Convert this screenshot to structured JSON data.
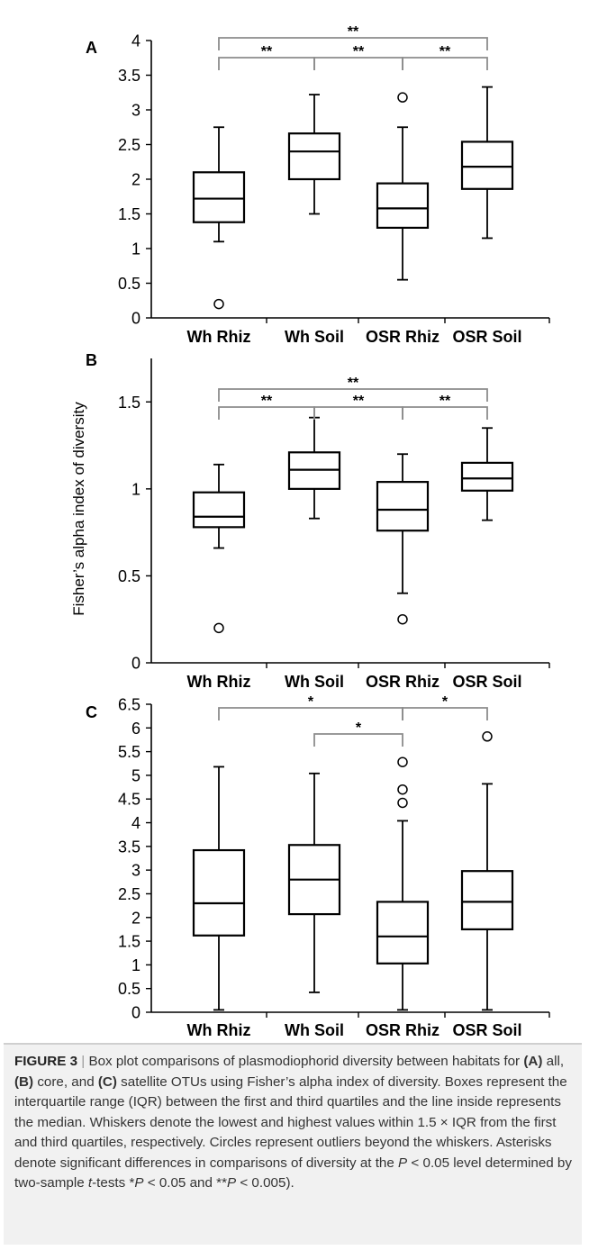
{
  "chart_data": [
    {
      "type": "box",
      "panel_label": "A",
      "ylabel": "",
      "ylim": [
        0,
        4
      ],
      "y_ticks": [
        "0",
        "0.5",
        "1",
        "1.5",
        "2",
        "2.5",
        "3",
        "3.5",
        "4"
      ],
      "y_tick_values": [
        0,
        0.5,
        1,
        1.5,
        2,
        2.5,
        3,
        3.5,
        4
      ],
      "categories": [
        "Wh Rhiz",
        "Wh Soil",
        "OSR Rhiz",
        "OSR Soil"
      ],
      "boxes": [
        {
          "whisker_low": 1.1,
          "q1": 1.38,
          "median": 1.72,
          "q3": 2.1,
          "whisker_high": 2.75,
          "outliers": [
            0.2
          ]
        },
        {
          "whisker_low": 1.5,
          "q1": 2.0,
          "median": 2.4,
          "q3": 2.66,
          "whisker_high": 3.22,
          "outliers": []
        },
        {
          "whisker_low": 0.55,
          "q1": 1.3,
          "median": 1.58,
          "q3": 1.94,
          "whisker_high": 2.75,
          "outliers": [
            3.18
          ]
        },
        {
          "whisker_low": 1.15,
          "q1": 1.86,
          "median": 2.18,
          "q3": 2.54,
          "whisker_high": 3.33,
          "outliers": []
        }
      ],
      "brackets": [
        {
          "from": 0,
          "to": 3,
          "level": 2,
          "label": "**"
        },
        {
          "from": 0,
          "to": 1,
          "level": 1,
          "label": "**"
        },
        {
          "from": 1,
          "to": 2,
          "level": 1,
          "label": "**"
        },
        {
          "from": 2,
          "to": 3,
          "level": 1,
          "label": "**"
        }
      ]
    },
    {
      "type": "box",
      "panel_label": "B",
      "ylabel": "Fisher’s alpha index of diversity",
      "ylim": [
        0,
        1.75
      ],
      "y_ticks": [
        "0",
        "0.5",
        "1",
        "1.5"
      ],
      "y_tick_values": [
        0,
        0.5,
        1,
        1.5
      ],
      "categories": [
        "Wh Rhiz",
        "Wh Soil",
        "OSR Rhiz",
        "OSR Soil"
      ],
      "boxes": [
        {
          "whisker_low": 0.66,
          "q1": 0.78,
          "median": 0.84,
          "q3": 0.98,
          "whisker_high": 1.14,
          "outliers": [
            0.2
          ]
        },
        {
          "whisker_low": 0.83,
          "q1": 1.0,
          "median": 1.11,
          "q3": 1.21,
          "whisker_high": 1.41,
          "outliers": []
        },
        {
          "whisker_low": 0.4,
          "q1": 0.76,
          "median": 0.88,
          "q3": 1.04,
          "whisker_high": 1.2,
          "outliers": [
            0.25
          ]
        },
        {
          "whisker_low": 0.82,
          "q1": 0.99,
          "median": 1.06,
          "q3": 1.15,
          "whisker_high": 1.35,
          "outliers": []
        }
      ],
      "brackets": [
        {
          "from": 0,
          "to": 3,
          "level": 2,
          "label": "**"
        },
        {
          "from": 0,
          "to": 1,
          "level": 1,
          "label": "**"
        },
        {
          "from": 1,
          "to": 2,
          "level": 1,
          "label": "**"
        },
        {
          "from": 2,
          "to": 3,
          "level": 1,
          "label": "**"
        }
      ]
    },
    {
      "type": "box",
      "panel_label": "C",
      "ylabel": "",
      "ylim": [
        0,
        6.5
      ],
      "y_ticks": [
        "0",
        "0.5",
        "1",
        "1.5",
        "2",
        "2.5",
        "3",
        "3.5",
        "4",
        "4.5",
        "5",
        "5.5",
        "6",
        "6.5"
      ],
      "y_tick_values": [
        0,
        0.5,
        1,
        1.5,
        2,
        2.5,
        3,
        3.5,
        4,
        4.5,
        5,
        5.5,
        6,
        6.5
      ],
      "categories": [
        "Wh Rhiz",
        "Wh Soil",
        "OSR Rhiz",
        "OSR Soil"
      ],
      "boxes": [
        {
          "whisker_low": 0.05,
          "q1": 1.62,
          "median": 2.3,
          "q3": 3.42,
          "whisker_high": 5.18,
          "outliers": []
        },
        {
          "whisker_low": 0.42,
          "q1": 2.07,
          "median": 2.8,
          "q3": 3.53,
          "whisker_high": 5.04,
          "outliers": []
        },
        {
          "whisker_low": 0.05,
          "q1": 1.03,
          "median": 1.6,
          "q3": 2.33,
          "whisker_high": 4.04,
          "outliers": [
            4.42,
            4.7,
            5.28
          ]
        },
        {
          "whisker_low": 0.05,
          "q1": 1.75,
          "median": 2.33,
          "q3": 2.98,
          "whisker_high": 4.82,
          "outliers": [
            5.82
          ]
        }
      ],
      "brackets": [
        {
          "from": 0,
          "to": 2,
          "level": 2,
          "label": "*"
        },
        {
          "from": 2,
          "to": 3,
          "level": 2,
          "label": "*"
        },
        {
          "from": 1,
          "to": 2,
          "level": 1,
          "label": "*"
        }
      ]
    }
  ],
  "caption": {
    "label": "FIGURE 3",
    "separator": "|",
    "text": [
      {
        "t": " Box plot comparisons of plasmodiophorid diversity between habitats for "
      },
      {
        "t": "(A)",
        "b": true
      },
      {
        "t": " all, "
      },
      {
        "t": "(B)",
        "b": true
      },
      {
        "t": " core, and "
      },
      {
        "t": "(C)",
        "b": true
      },
      {
        "t": " satellite OTUs using Fisher’s alpha index of diversity. Boxes represent the interquartile range (IQR) between the first and third quartiles and the line inside represents the median. Whiskers denote the lowest and highest values within 1.5 × IQR from the first and third quartiles, respectively. Circles represent outliers beyond the whiskers. Asterisks denote significant differences in comparisons of diversity at the "
      },
      {
        "t": "P",
        "i": true
      },
      {
        "t": " < 0.05 level determined by two-sample "
      },
      {
        "t": "t",
        "i": true
      },
      {
        "t": "-tests *"
      },
      {
        "t": "P",
        "i": true
      },
      {
        "t": " < 0.05 and **"
      },
      {
        "t": "P",
        "i": true
      },
      {
        "t": " < 0.005)."
      }
    ]
  },
  "colors": {
    "box_stroke": "#000000",
    "bracket": "#8c8c8c",
    "caption_bg": "#f1f1f1",
    "caption_text": "#333333"
  }
}
